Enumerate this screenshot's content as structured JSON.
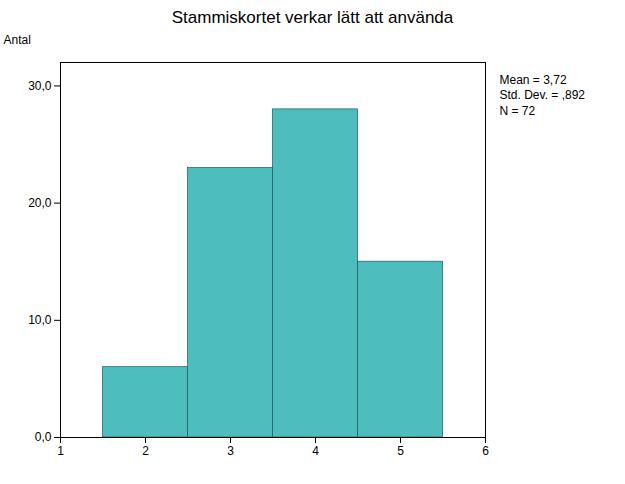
{
  "chart_data": {
    "type": "histogram",
    "title": "Stammiskortet verkar lätt att använda",
    "ylabel": "Antal",
    "bins": [
      1.5,
      2.5,
      3.5,
      4.5,
      5.5
    ],
    "values": [
      6,
      23,
      28,
      15
    ],
    "color": "#4DBDBD",
    "xlim": [
      1,
      6
    ],
    "xticks": [
      1,
      2,
      3,
      4,
      5,
      6
    ],
    "ylim": [
      0,
      32
    ],
    "yticks": [
      {
        "value": 0.0,
        "label": "0,0"
      },
      {
        "value": 10.0,
        "label": "10,0"
      },
      {
        "value": 20.0,
        "label": "20,0"
      },
      {
        "value": 30.0,
        "label": "30,0"
      }
    ],
    "grid": false,
    "annotations": [
      "Mean = 3,72\nStd. Dev. = ,892\nN = 72"
    ]
  }
}
